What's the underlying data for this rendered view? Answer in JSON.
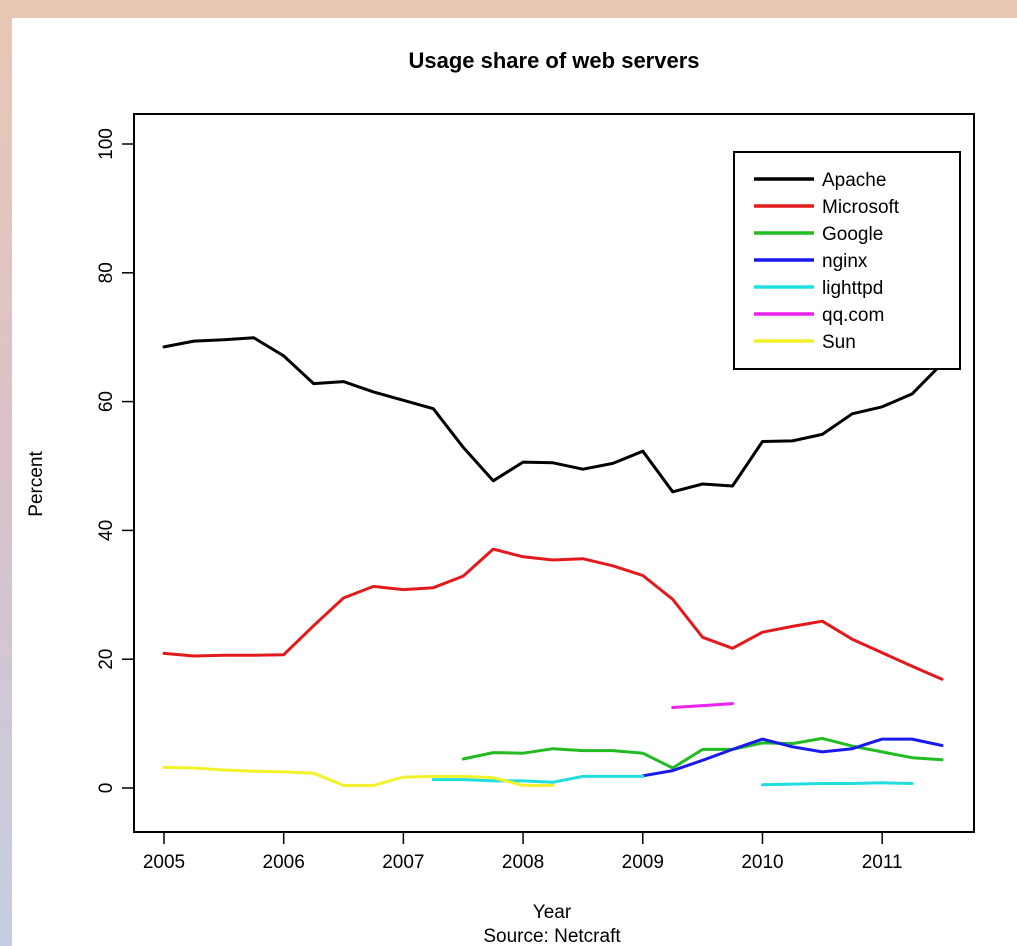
{
  "chart_data": {
    "type": "line",
    "title": "Usage share of web servers",
    "xlabel": "Year",
    "subtitle": "Source: Netcraft",
    "ylabel": "Percent",
    "xlim": [
      2005,
      2011.5
    ],
    "ylim": [
      0,
      100
    ],
    "x_ticks": [
      2005,
      2006,
      2007,
      2008,
      2009,
      2010,
      2011
    ],
    "y_ticks": [
      0,
      20,
      40,
      60,
      80,
      100
    ],
    "grid": false,
    "legend_position": "top-right",
    "series": [
      {
        "name": "Apache",
        "color": "#000000",
        "x": [
          2005,
          2005.25,
          2005.5,
          2005.75,
          2006,
          2006.25,
          2006.5,
          2006.75,
          2007,
          2007.25,
          2007.5,
          2007.75,
          2008,
          2008.25,
          2008.5,
          2008.75,
          2009,
          2009.25,
          2009.5,
          2009.75,
          2010,
          2010.25,
          2010.5,
          2010.75,
          2011,
          2011.25,
          2011.5
        ],
        "y": [
          68.5,
          69.4,
          69.6,
          69.9,
          67.1,
          62.8,
          63.1,
          61.5,
          60.2,
          58.9,
          52.9,
          47.7,
          50.6,
          50.5,
          49.5,
          50.4,
          52.3,
          46.0,
          47.2,
          46.9,
          53.8,
          53.9,
          54.9,
          58.1,
          59.2,
          61.2,
          65.9
        ]
      },
      {
        "name": "Microsoft",
        "color": "#e31a1c",
        "x": [
          2005,
          2005.25,
          2005.5,
          2005.75,
          2006,
          2006.25,
          2006.5,
          2006.75,
          2007,
          2007.25,
          2007.5,
          2007.75,
          2008,
          2008.25,
          2008.5,
          2008.75,
          2009,
          2009.25,
          2009.5,
          2009.75,
          2010,
          2010.25,
          2010.5,
          2010.75,
          2011,
          2011.25,
          2011.5
        ],
        "y": [
          20.9,
          20.5,
          20.6,
          20.6,
          20.7,
          25.2,
          29.5,
          31.3,
          30.8,
          31.1,
          32.9,
          37.1,
          35.9,
          35.4,
          35.6,
          34.5,
          33.0,
          29.3,
          23.4,
          21.7,
          24.2,
          25.1,
          25.9,
          23.1,
          21.0,
          18.9,
          16.9
        ]
      },
      {
        "name": "Google",
        "color": "#22bb22",
        "x": [
          2007.5,
          2007.75,
          2008,
          2008.25,
          2008.5,
          2008.75,
          2009,
          2009.25,
          2009.5,
          2009.75,
          2010,
          2010.25,
          2010.5,
          2010.75,
          2011,
          2011.25,
          2011.5
        ],
        "y": [
          4.5,
          5.5,
          5.4,
          6.1,
          5.8,
          5.8,
          5.4,
          3.1,
          6.0,
          6.0,
          7.0,
          6.9,
          7.7,
          6.5,
          5.6,
          4.7,
          4.4
        ]
      },
      {
        "name": "nginx",
        "color": "#1a1aee",
        "x": [
          2009,
          2009.25,
          2009.5,
          2009.75,
          2010,
          2010.25,
          2010.5,
          2010.75,
          2011,
          2011.25,
          2011.5
        ],
        "y": [
          1.9,
          2.7,
          4.3,
          6.0,
          7.6,
          6.4,
          5.6,
          6.1,
          7.6,
          7.6,
          6.6
        ]
      },
      {
        "name": "lighttpd",
        "color": "#22dddd",
        "segments": [
          {
            "x": [
              2007.25,
              2007.5,
              2007.75,
              2008,
              2008.25,
              2008.5,
              2008.75,
              2009
            ],
            "y": [
              1.3,
              1.3,
              1.1,
              1.1,
              0.9,
              1.8,
              1.8,
              1.8
            ]
          },
          {
            "x": [
              2010,
              2010.25,
              2010.5,
              2010.75,
              2011,
              2011.25
            ],
            "y": [
              0.5,
              0.6,
              0.7,
              0.7,
              0.8,
              0.7
            ]
          }
        ]
      },
      {
        "name": "qq.com",
        "color": "#ee22ee",
        "x": [
          2009.25,
          2009.5,
          2009.75
        ],
        "y": [
          12.5,
          12.8,
          13.1
        ]
      },
      {
        "name": "Sun",
        "color": "#f2f22a",
        "x": [
          2005,
          2005.25,
          2005.5,
          2005.75,
          2006,
          2006.25,
          2006.5,
          2006.75,
          2007,
          2007.25,
          2007.5,
          2007.75,
          2008,
          2008.25
        ],
        "y": [
          3.2,
          3.1,
          2.8,
          2.6,
          2.5,
          2.3,
          0.4,
          0.4,
          1.7,
          1.8,
          1.8,
          1.6,
          0.4,
          0.4
        ]
      }
    ]
  }
}
